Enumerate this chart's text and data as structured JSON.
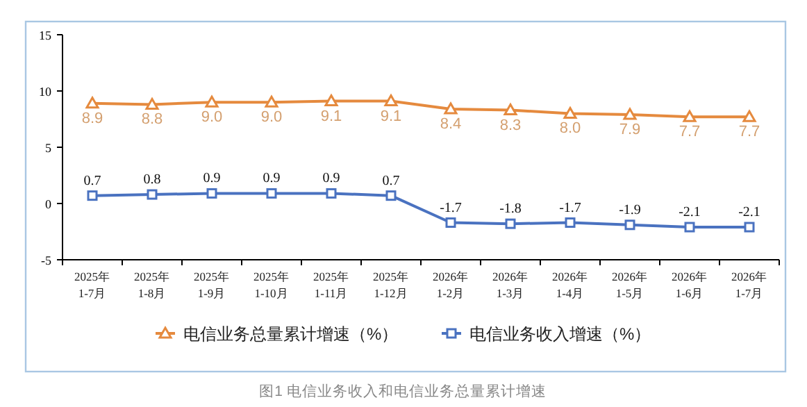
{
  "chart_data": {
    "type": "line",
    "title": "图1 电信业务收入和电信业务总量累计增速",
    "categories": [
      "2025年\n1-7月",
      "2025年\n1-8月",
      "2025年\n1-9月",
      "2025年\n1-10月",
      "2025年\n1-11月",
      "2025年\n1-12月",
      "2026年\n1-2月",
      "2026年\n1-3月",
      "2026年\n1-4月",
      "2026年\n1-5月",
      "2026年\n1-6月",
      "2026年\n1-7月"
    ],
    "series": [
      {
        "name": "电信业务总量累计增速（%）",
        "color": "#e58a3e",
        "marker": "triangle",
        "values": [
          8.9,
          8.8,
          9.0,
          9.0,
          9.1,
          9.1,
          8.4,
          8.3,
          8.0,
          7.9,
          7.7,
          7.7
        ],
        "value_labels": [
          "8.9",
          "8.8",
          "9.0",
          "9.0",
          "9.1",
          "9.1",
          "8.4",
          "8.3",
          "8.0",
          "7.9",
          "7.7",
          "7.7"
        ]
      },
      {
        "name": "电信业务收入增速（%）",
        "color": "#4a72c0",
        "marker": "square",
        "values": [
          0.7,
          0.8,
          0.9,
          0.9,
          0.9,
          0.7,
          -1.7,
          -1.8,
          -1.7,
          -1.9,
          -2.1,
          -2.1
        ],
        "value_labels": [
          "0.7",
          "0.8",
          "0.9",
          "0.9",
          "0.9",
          "0.7",
          "-1.7",
          "-1.8",
          "-1.7",
          "-1.9",
          "-2.1",
          "-2.1"
        ]
      }
    ],
    "ylim": [
      -5,
      15
    ],
    "yticks": [
      -5,
      0,
      5,
      10,
      15
    ],
    "grid": false,
    "legend": "bottom"
  }
}
